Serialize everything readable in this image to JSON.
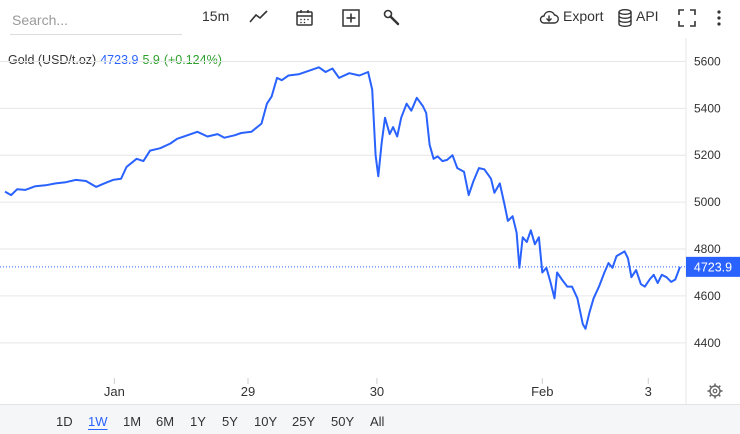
{
  "toolbar": {
    "search_placeholder": "Search...",
    "interval": "15m",
    "export_label": "Export",
    "api_label": "API"
  },
  "legend": {
    "symbol": "Gold (USD/t.oz)",
    "price": "4723.9",
    "change": "5.9",
    "change_pct": "(+0.124%)"
  },
  "ranges": [
    {
      "label": "1D",
      "active": false
    },
    {
      "label": "1W",
      "active": true
    },
    {
      "label": "1M",
      "active": false
    },
    {
      "label": "6M",
      "active": false
    },
    {
      "label": "1Y",
      "active": false
    },
    {
      "label": "5Y",
      "active": false
    },
    {
      "label": "10Y",
      "active": false
    },
    {
      "label": "25Y",
      "active": false
    },
    {
      "label": "50Y",
      "active": false
    },
    {
      "label": "All",
      "active": false
    }
  ],
  "colors": {
    "line": "#2962ff",
    "up": "#2ca02c",
    "grid": "#e6e6e6",
    "price_tag": "#2962ff"
  },
  "chart_data": {
    "type": "line",
    "title": "Gold (USD/t.oz)",
    "ylim": [
      4250,
      5700
    ],
    "yticks": [
      4400,
      4600,
      4800,
      5000,
      5200,
      5400,
      5600
    ],
    "xticks": [
      "Jan",
      "29",
      "30",
      "Feb",
      "3"
    ],
    "xlim": [
      0,
      100
    ],
    "xtick_positions": [
      16.2,
      36.0,
      55.1,
      79.6,
      95.3
    ],
    "last_price_label": "4723.9",
    "series": [
      {
        "name": "Gold (USD/t.oz)",
        "points": [
          [
            0,
            5045
          ],
          [
            0.9,
            5030
          ],
          [
            1.8,
            5055
          ],
          [
            3,
            5052
          ],
          [
            4.5,
            5068
          ],
          [
            6,
            5072
          ],
          [
            7.5,
            5080
          ],
          [
            9,
            5085
          ],
          [
            10.5,
            5095
          ],
          [
            12,
            5090
          ],
          [
            13.5,
            5065
          ],
          [
            14.7,
            5080
          ],
          [
            16,
            5095
          ],
          [
            17.2,
            5100
          ],
          [
            18,
            5150
          ],
          [
            19.5,
            5185
          ],
          [
            20.5,
            5175
          ],
          [
            21.5,
            5220
          ],
          [
            23,
            5230
          ],
          [
            24.5,
            5250
          ],
          [
            25.5,
            5270
          ],
          [
            27,
            5285
          ],
          [
            28.5,
            5300
          ],
          [
            30,
            5280
          ],
          [
            31.5,
            5290
          ],
          [
            32.5,
            5275
          ],
          [
            34,
            5285
          ],
          [
            35,
            5295
          ],
          [
            36.5,
            5300
          ],
          [
            38,
            5335
          ],
          [
            38.8,
            5420
          ],
          [
            39.5,
            5450
          ],
          [
            40.3,
            5530
          ],
          [
            41,
            5520
          ],
          [
            42,
            5540
          ],
          [
            43.5,
            5545
          ],
          [
            45,
            5560
          ],
          [
            46.5,
            5575
          ],
          [
            47.5,
            5555
          ],
          [
            48.5,
            5570
          ],
          [
            49.5,
            5530
          ],
          [
            51,
            5550
          ],
          [
            52.5,
            5540
          ],
          [
            53.8,
            5555
          ],
          [
            54.4,
            5480
          ],
          [
            54.9,
            5200
          ],
          [
            55.3,
            5110
          ],
          [
            55.8,
            5250
          ],
          [
            56.3,
            5360
          ],
          [
            57,
            5290
          ],
          [
            57.5,
            5320
          ],
          [
            58.1,
            5280
          ],
          [
            58.7,
            5360
          ],
          [
            59.5,
            5420
          ],
          [
            60.2,
            5390
          ],
          [
            61,
            5445
          ],
          [
            61.9,
            5410
          ],
          [
            62.4,
            5380
          ],
          [
            62.9,
            5245
          ],
          [
            63.5,
            5185
          ],
          [
            64.1,
            5195
          ],
          [
            64.8,
            5175
          ],
          [
            65.5,
            5180
          ],
          [
            66.3,
            5200
          ],
          [
            67,
            5145
          ],
          [
            68,
            5130
          ],
          [
            68.7,
            5030
          ],
          [
            69.4,
            5090
          ],
          [
            70.2,
            5145
          ],
          [
            71,
            5140
          ],
          [
            72,
            5100
          ],
          [
            72.5,
            5040
          ],
          [
            73.3,
            5080
          ],
          [
            74,
            4990
          ],
          [
            74.5,
            4920
          ],
          [
            75.2,
            4940
          ],
          [
            75.8,
            4870
          ],
          [
            76.2,
            4720
          ],
          [
            76.7,
            4850
          ],
          [
            77.3,
            4830
          ],
          [
            77.9,
            4880
          ],
          [
            78.5,
            4820
          ],
          [
            79.1,
            4850
          ],
          [
            79.6,
            4700
          ],
          [
            80.2,
            4720
          ],
          [
            80.8,
            4660
          ],
          [
            81.4,
            4590
          ],
          [
            81.8,
            4700
          ],
          [
            82.5,
            4670
          ],
          [
            83.3,
            4640
          ],
          [
            84,
            4640
          ],
          [
            84.8,
            4590
          ],
          [
            85.6,
            4480
          ],
          [
            86,
            4460
          ],
          [
            86.6,
            4530
          ],
          [
            87.2,
            4590
          ],
          [
            88,
            4640
          ],
          [
            88.8,
            4700
          ],
          [
            89.4,
            4740
          ],
          [
            90,
            4720
          ],
          [
            90.6,
            4770
          ],
          [
            91.2,
            4780
          ],
          [
            91.8,
            4790
          ],
          [
            92.3,
            4760
          ],
          [
            92.8,
            4680
          ],
          [
            93.5,
            4710
          ],
          [
            94.2,
            4650
          ],
          [
            94.8,
            4640
          ],
          [
            95.5,
            4670
          ],
          [
            96.1,
            4690
          ],
          [
            96.7,
            4655
          ],
          [
            97.3,
            4690
          ],
          [
            98,
            4680
          ],
          [
            98.7,
            4660
          ],
          [
            99.3,
            4670
          ],
          [
            100,
            4724
          ]
        ]
      }
    ]
  }
}
